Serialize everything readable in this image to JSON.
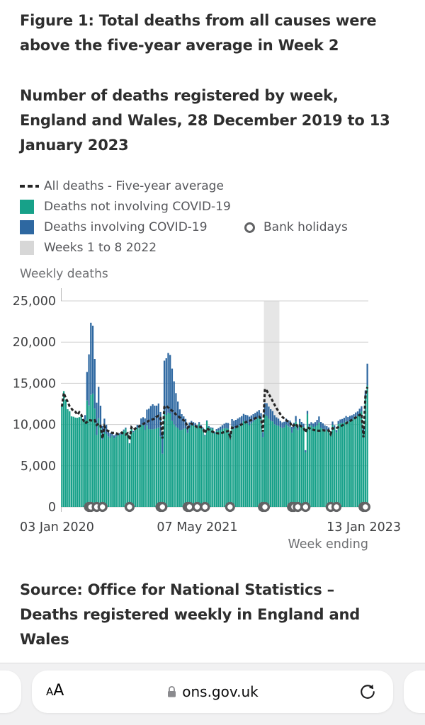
{
  "figure": {
    "title_lines": [
      "Figure 1: Total deaths from all causes were",
      "above the five-year average in Week 2"
    ],
    "subtitle_lines": [
      "Number of deaths registered by week,",
      "England and Wales, 28 December 2019 to 13",
      "January 2023"
    ],
    "source_lines": [
      "Source: Office for National Statistics –",
      "Deaths registered weekly in England and",
      "Wales"
    ]
  },
  "legend": {
    "items": [
      {
        "label": "All deaths - Five-year average",
        "swatch": "dashed-line",
        "color": "#262626"
      },
      {
        "label": "Deaths not involving COVID-19",
        "swatch": "square",
        "color": "#17A189"
      },
      {
        "label": "Deaths involving COVID-19",
        "swatch": "square",
        "color": "#2E68A1"
      },
      {
        "label": "Weeks 1 to 8 2022",
        "swatch": "square",
        "color": "#D7D7D7"
      }
    ],
    "bank_holidays_label": "Bank holidays"
  },
  "browser": {
    "reader_label_small": "A",
    "reader_label_big": "A",
    "url": "ons.gov.uk",
    "reload_glyph": "↻"
  },
  "chart_data": {
    "type": "bar",
    "subtype": "stacked-bars-with-line",
    "ylabel": "Weekly deaths",
    "xlabel": "Week ending",
    "ylim": [
      0,
      25000
    ],
    "ytick_values": [
      0,
      5000,
      10000,
      15000,
      20000,
      25000
    ],
    "ytick_labels": [
      "0",
      "5,000",
      "10,000",
      "15,000",
      "20,000",
      "25,000"
    ],
    "xticks": [
      {
        "index": 0,
        "label": "03 Jan 2020",
        "anchor": "start"
      },
      {
        "index": 70,
        "label": "07 May 2021",
        "anchor": "middle"
      },
      {
        "index": 158,
        "label": "13 Jan 2023",
        "anchor": "end"
      }
    ],
    "x_start": "03 Jan 2020",
    "x_end": "13 Jan 2023",
    "x_step": "1 week",
    "band": {
      "label": "Weeks 1 to 8 2022",
      "start_index": 105,
      "end_index": 112,
      "color": "#E6E6E6"
    },
    "bank_holiday_indices": [
      14,
      15,
      18,
      21,
      35,
      51,
      52,
      65,
      66,
      70,
      74,
      87,
      104,
      105,
      119,
      120,
      122,
      126,
      139,
      142,
      156,
      157
    ],
    "colors": {
      "non_covid": "#17A189",
      "covid": "#2E68A1",
      "average_line": "#262626",
      "grid": "#CFCFCF",
      "holiday_ring": "#626365"
    },
    "series": [
      {
        "name": "All deaths total",
        "values": [
          12254,
          14058,
          12990,
          11856,
          11612,
          10986,
          10944,
          10841,
          10816,
          10895,
          11019,
          10645,
          11141,
          16387,
          18516,
          22351,
          21997,
          17953,
          12657,
          14573,
          12288,
          9824,
          10709,
          9976,
          9339,
          8979,
          9140,
          8690,
          8823,
          8891,
          8946,
          8945,
          9392,
          9631,
          9032,
          7739,
          9811,
          9215,
          9634,
          9945,
          9954,
          10739,
          10887,
          10739,
          11812,
          11917,
          12254,
          12456,
          12292,
          12293,
          12548,
          11520,
          8861,
          17751,
          18042,
          18676,
          18448,
          16786,
          15244,
          13809,
          12786,
          11840,
          11258,
          10987,
          10681,
          9800,
          10245,
          10439,
          10296,
          10191,
          9941,
          10290,
          9930,
          9628,
          8771,
          10510,
          9810,
          9660,
          9619,
          9100,
          9444,
          9560,
          9730,
          9920,
          10098,
          10221,
          10180,
          9043,
          10649,
          10463,
          10571,
          10724,
          10873,
          11020,
          11290,
          11178,
          11124,
          10951,
          11107,
          11254,
          11410,
          11562,
          11750,
          11391,
          9087,
          12605,
          12583,
          12175,
          11854,
          11630,
          11130,
          10869,
          10711,
          10441,
          10263,
          10335,
          10710,
          10528,
          10477,
          9717,
          10207,
          11027,
          9930,
          10666,
          10306,
          10094,
          6878,
          11660,
          10076,
          10286,
          10123,
          10294,
          10561,
          10978,
          10306,
          10141,
          9898,
          9796,
          9648,
          8981,
          10358,
          9914,
          9336,
          10426,
          10613,
          10672,
          10816,
          11030,
          10906,
          11044,
          11123,
          11248,
          11462,
          11590,
          11916,
          12214,
          9718,
          14133,
          17381
        ]
      },
      {
        "name": "Deaths involving COVID-19",
        "values": [
          0,
          0,
          0,
          0,
          0,
          0,
          0,
          0,
          0,
          0,
          5,
          103,
          539,
          3475,
          6213,
          8758,
          8237,
          6035,
          3930,
          3810,
          2589,
          1653,
          1588,
          1114,
          783,
          606,
          532,
          366,
          295,
          217,
          193,
          152,
          139,
          138,
          101,
          78,
          99,
          139,
          215,
          321,
          438,
          761,
          978,
          1379,
          1937,
          2466,
          2838,
          3040,
          2835,
          2756,
          2912,
          2986,
          2399,
          6057,
          6877,
          7245,
          7102,
          6333,
          5226,
          4079,
          3219,
          2505,
          1899,
          1501,
          1153,
          853,
          719,
          520,
          424,
          351,
          270,
          205,
          169,
          138,
          116,
          107,
          99,
          119,
          129,
          169,
          224,
          286,
          392,
          468,
          571,
          654,
          692,
          768,
          854,
          988,
          1035,
          1011,
          975,
          911,
          852,
          941,
          995,
          1031,
          960,
          904,
          825,
          802,
          743,
          690,
          634,
          1382,
          1552,
          1484,
          1393,
          1251,
          1098,
          962,
          868,
          752,
          705,
          692,
          726,
          756,
          810,
          725,
          711,
          696,
          590,
          522,
          443,
          389,
          258,
          394,
          345,
          392,
          449,
          541,
          640,
          745,
          705,
          658,
          592,
          508,
          440,
          344,
          391,
          356,
          290,
          381,
          441,
          512,
          584,
          645,
          612,
          574,
          534,
          512,
          498,
          535,
          578,
          612,
          482,
          905,
          2645
        ]
      },
      {
        "name": "All deaths - Five-year average",
        "values": [
          12175,
          13822,
          13216,
          12760,
          12206,
          11925,
          11627,
          11548,
          11183,
          11498,
          11205,
          10573,
          10130,
          10305,
          10520,
          10497,
          10458,
          10520,
          9941,
          10100,
          9835,
          8295,
          9786,
          9335,
          9206,
          9079,
          8981,
          9007,
          8945,
          8840,
          8906,
          9025,
          8836,
          8770,
          8945,
          8161,
          9648,
          9384,
          9514,
          9661,
          9765,
          9930,
          10056,
          10197,
          10320,
          10462,
          10570,
          10628,
          10731,
          10941,
          11069,
          10817,
          8307,
          12122,
          12286,
          12053,
          11859,
          11672,
          11450,
          11228,
          11046,
          10853,
          10671,
          10515,
          10370,
          9596,
          9819,
          10104,
          9967,
          9846,
          9673,
          9786,
          9654,
          9501,
          8926,
          9561,
          9379,
          9243,
          9119,
          9036,
          8970,
          8923,
          8949,
          9003,
          9086,
          9146,
          9213,
          8567,
          9623,
          9550,
          9679,
          9795,
          9899,
          10022,
          10161,
          10270,
          10367,
          10454,
          10539,
          10640,
          10765,
          10861,
          10949,
          10711,
          9136,
          14322,
          14092,
          13688,
          13295,
          12843,
          12402,
          11996,
          11608,
          11251,
          10934,
          10712,
          10524,
          10371,
          10253,
          9742,
          9906,
          10109,
          9714,
          9880,
          9751,
          9611,
          9059,
          9652,
          9541,
          9437,
          9355,
          9296,
          9265,
          9248,
          9267,
          9301,
          9269,
          9255,
          9294,
          8837,
          9556,
          9512,
          9581,
          9672,
          9775,
          9887,
          10011,
          10148,
          10281,
          10419,
          10562,
          10703,
          10848,
          11002,
          11163,
          11326,
          8450,
          13534,
          14544
        ]
      }
    ]
  }
}
